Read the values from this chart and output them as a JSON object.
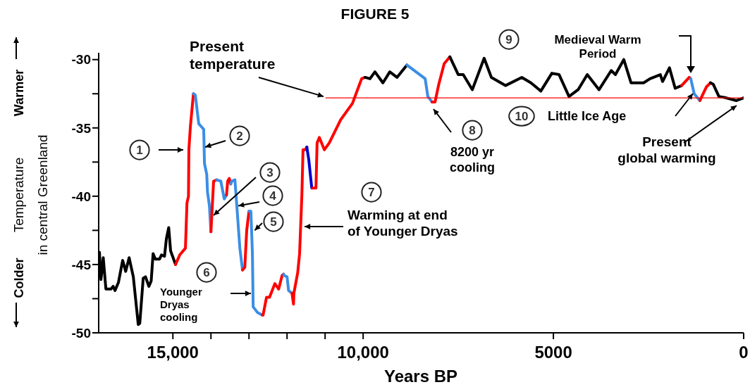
{
  "chart_data": {
    "type": "line",
    "title": "FIGURE 5",
    "xlabel": "Years BP",
    "ylabel": "Temperature\nin central Greenland",
    "xlim": [
      16950,
      0
    ],
    "ylim": [
      -50,
      -29.5
    ],
    "xticks": [
      {
        "value": 15000,
        "label": "15,000"
      },
      {
        "value": 14000,
        "label": null
      },
      {
        "value": 13000,
        "label": null
      },
      {
        "value": 12000,
        "label": null
      },
      {
        "value": 11000,
        "label": null
      },
      {
        "value": 10000,
        "label": "10,000"
      },
      5000,
      0
    ],
    "yticks": [
      -50,
      {
        "value": -47.5,
        "label": null
      },
      -45,
      {
        "value": -42.5,
        "label": null
      },
      -40,
      {
        "value": -37.5,
        "label": null
      },
      -35,
      {
        "value": -32.5,
        "label": null
      },
      -30
    ],
    "grid": false,
    "marker": "none",
    "line_style": "solid",
    "series": [
      {
        "color": "#000000",
        "x": [
          16930,
          16890,
          16830,
          16760,
          16630,
          16570,
          16520,
          16430,
          16320,
          16240,
          16150,
          16040,
          15910,
          15870,
          15780,
          15720,
          15630,
          15570,
          15520,
          15460,
          15350,
          15300,
          15220,
          15170,
          15110,
          15060,
          14930
        ],
        "values": [
          -44.1,
          -46.1,
          -44.5,
          -46.8,
          -46.8,
          -46.6,
          -46.9,
          -46.3,
          -44.7,
          -45.5,
          -44.5,
          -45.9,
          -49.4,
          -49.3,
          -46.0,
          -45.9,
          -46.6,
          -46.2,
          -44.2,
          -44.6,
          -44.6,
          -44.3,
          -44.4,
          -43.1,
          -42.3,
          -44.0,
          -45.0
        ]
      },
      {
        "color": "#ff0000",
        "x": [
          14930,
          14820,
          14670,
          14630,
          14590,
          14580,
          14540,
          14460
        ],
        "values": [
          -45.0,
          -44.3,
          -43.8,
          -40.5,
          -40.0,
          -36.6,
          -34.9,
          -32.5
        ]
      },
      {
        "color": "#3a8ee6",
        "x": [
          14460,
          14410,
          14320,
          14190,
          14170,
          14110,
          14090,
          14040,
          14000
        ],
        "values": [
          -32.5,
          -32.6,
          -34.7,
          -35.1,
          -37.6,
          -38.4,
          -39.7,
          -40.7,
          -42.6
        ]
      },
      {
        "color": "#ff0000",
        "x": [
          14000,
          13930,
          13850
        ],
        "values": [
          -42.6,
          -38.9,
          -38.8
        ]
      },
      {
        "color": "#3a8ee6",
        "x": [
          13850,
          13740,
          13650,
          13590
        ],
        "values": [
          -38.8,
          -38.9,
          -40.2,
          -39.9
        ]
      },
      {
        "color": "#ff0000",
        "x": [
          13590,
          13560,
          13520,
          13480
        ],
        "values": [
          -39.9,
          -38.9,
          -38.7,
          -39.1
        ]
      },
      {
        "color": "#3a8ee6",
        "x": [
          13480,
          13450,
          13370,
          13320,
          13240,
          13170
        ],
        "values": [
          -39.1,
          -38.9,
          -38.8,
          -40.7,
          -43.8,
          -45.4
        ]
      },
      {
        "color": "#ff0000",
        "x": [
          13170,
          13110,
          13060,
          13000
        ],
        "values": [
          -45.4,
          -45.2,
          -42.5,
          -41.1
        ]
      },
      {
        "color": "#3a8ee6",
        "x": [
          13000,
          12950,
          12910,
          12890,
          12780,
          12650
        ],
        "values": [
          -41.1,
          -41.1,
          -44.2,
          -48.1,
          -48.5,
          -48.7
        ]
      },
      {
        "color": "#ff0000",
        "x": [
          12650,
          12630,
          12540,
          12460,
          12320,
          12220,
          12130,
          12090
        ],
        "values": [
          -48.7,
          -48.7,
          -47.4,
          -47.4,
          -46.4,
          -46.8,
          -45.8,
          -45.7
        ]
      },
      {
        "color": "#3a8ee6",
        "x": [
          12090,
          12080,
          12000,
          11960,
          11870
        ],
        "values": [
          -45.7,
          -45.8,
          -45.9,
          -46.9,
          -47.1
        ]
      },
      {
        "color": "#ff0000",
        "x": [
          11870,
          11830,
          11820,
          11720,
          11670,
          11610,
          11580,
          11520,
          11480
        ],
        "values": [
          -47.1,
          -47.9,
          -47.1,
          -45.6,
          -44.2,
          -39.9,
          -36.6,
          -36.6,
          -36.4
        ]
      },
      {
        "color": "#0000cc",
        "x": [
          11480,
          11430,
          11350,
          11330
        ],
        "values": [
          -36.4,
          -37.3,
          -39.4,
          -39.4
        ]
      },
      {
        "color": "#ff0000",
        "x": [
          11330,
          11240,
          11210,
          11150,
          11020,
          10890,
          10590,
          10280,
          10040,
          9950
        ],
        "values": [
          -39.4,
          -39.4,
          -36.1,
          -35.7,
          -36.6,
          -36.1,
          -34.4,
          -33.2,
          -31.4,
          -31.3
        ]
      },
      {
        "color": "#000000",
        "x": [
          9950,
          9820,
          9690,
          9480,
          9300,
          9110,
          8850
        ],
        "values": [
          -31.3,
          -31.4,
          -30.9,
          -31.7,
          -30.9,
          -31.3,
          -30.4
        ]
      },
      {
        "color": "#3a8ee6",
        "x": [
          8850,
          8370,
          8300,
          8190
        ],
        "values": [
          -30.4,
          -31.4,
          -32.7,
          -33.1
        ]
      },
      {
        "color": "#ff0000",
        "x": [
          8190,
          8110,
          8020,
          7870,
          7720
        ],
        "values": [
          -33.1,
          -33.1,
          -31.9,
          -30.3,
          -29.8
        ]
      },
      {
        "color": "#000000",
        "x": [
          7720,
          7500,
          7370,
          7130,
          6820,
          6630,
          6260,
          5830,
          5590,
          5330,
          5040,
          4850,
          4590,
          4350,
          4110,
          3800,
          3480,
          3370,
          3150,
          2960,
          2630,
          2460,
          2190,
          2130,
          1950,
          1800,
          1630
        ],
        "values": [
          -29.8,
          -31.1,
          -31.1,
          -32.2,
          -29.9,
          -31.3,
          -31.9,
          -31.3,
          -31.7,
          -32.3,
          -31.0,
          -31.1,
          -32.7,
          -32.2,
          -31.1,
          -32.2,
          -30.8,
          -31.1,
          -30.0,
          -31.7,
          -31.7,
          -31.4,
          -31.1,
          -31.6,
          -30.6,
          -32.1,
          -31.9
        ]
      },
      {
        "color": "#ff0000",
        "x": [
          1630,
          1430,
          1390
        ],
        "values": [
          -31.9,
          -31.3,
          -31.4
        ]
      },
      {
        "color": "#3a8ee6",
        "x": [
          1390,
          1300,
          1150
        ],
        "values": [
          -31.4,
          -32.5,
          -33.0
        ]
      },
      {
        "color": "#ff0000",
        "x": [
          1150,
          980,
          870
        ],
        "values": [
          -33.0,
          -32.0,
          -31.7
        ]
      },
      {
        "color": "#000000",
        "x": [
          870,
          800,
          650,
          460,
          190,
          0
        ],
        "values": [
          -31.7,
          -31.8,
          -32.7,
          -32.8,
          -33.0,
          -32.8
        ]
      },
      {
        "color": "#ff0000",
        "x": [
          10980,
          0
        ],
        "values": [
          -32.8,
          -32.8
        ]
      }
    ],
    "annotations": [
      "Warmer",
      "Colder",
      {
        "text": "Present\ntemperature",
        "x": 11040,
        "y": -32.7
      },
      "1",
      {
        "text": "2",
        "x": 14150,
        "y": -36.4
      },
      {
        "text": "3",
        "x": 13930,
        "y": -41.4
      },
      {
        "text": "4",
        "x": 13280,
        "y": -40.7
      },
      {
        "text": "5",
        "x": 12850,
        "y": -42.5
      },
      "6",
      "Younger\nDryas\ncooling",
      "7",
      "Warming at end\nof Younger Dryas",
      "8",
      "8200 yr\ncooling",
      "9",
      "Medieval Warm\nPeriod",
      "10",
      "Little Ice Age",
      "Present\nglobal warming"
    ]
  }
}
